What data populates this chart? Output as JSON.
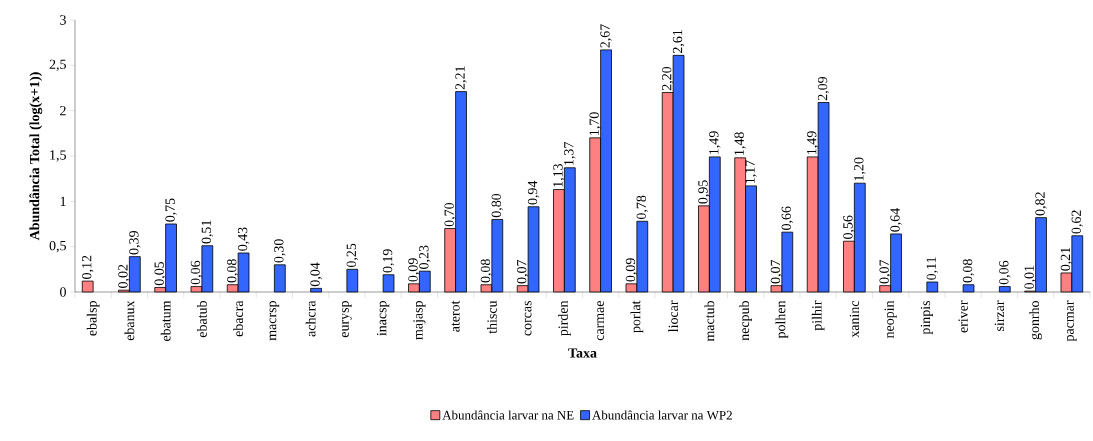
{
  "chart_data": {
    "type": "bar",
    "xlabel": "Taxa",
    "ylabel": "Abundância Total (log(x+1))",
    "categories": [
      "ebalsp",
      "ebanux",
      "ebatum",
      "ebatub",
      "ebacra",
      "macrsp",
      "achcra",
      "eurysp",
      "inacsp",
      "majasp",
      "aterot",
      "thiscu",
      "corcas",
      "pirden",
      "carmae",
      "porlat",
      "liocar",
      "mactub",
      "necpub",
      "polhen",
      "pilhir",
      "xaninc",
      "neopin",
      "pinpis",
      "eriver",
      "sirzar",
      "gonrho",
      "pacmar"
    ],
    "series": [
      {
        "name": "Abundância larvar na NE",
        "color": "#ff8080",
        "values": [
          0.12,
          0.02,
          0.05,
          0.06,
          0.08,
          null,
          null,
          null,
          null,
          0.09,
          0.7,
          0.08,
          0.07,
          1.13,
          1.7,
          0.09,
          2.2,
          0.95,
          1.48,
          0.07,
          1.49,
          0.56,
          0.07,
          null,
          null,
          null,
          0.01,
          0.21
        ],
        "value_labels": [
          "0,12",
          "0,02",
          "0,05",
          "0,06",
          "0,08",
          null,
          null,
          null,
          null,
          "0,09",
          "0,70",
          "0,08",
          "0,07",
          "1,13",
          "1,70",
          "0,09",
          "2,20",
          "0,95",
          "1,48",
          "0,07",
          "1,49",
          "0,56",
          "0,07",
          null,
          null,
          null,
          "0,01",
          "0,21"
        ]
      },
      {
        "name": "Abundância larvar na WP2",
        "color": "#3366ff",
        "values": [
          null,
          0.39,
          0.75,
          0.51,
          0.43,
          0.3,
          0.04,
          0.25,
          0.19,
          0.23,
          2.21,
          0.8,
          0.94,
          1.37,
          2.67,
          0.78,
          2.61,
          1.49,
          1.17,
          0.66,
          2.09,
          1.2,
          0.64,
          0.11,
          0.08,
          0.06,
          0.82,
          0.62
        ],
        "value_labels": [
          null,
          "0,39",
          "0,75",
          "0,51",
          "0,43",
          "0,30",
          "0,04",
          "0,25",
          "0,19",
          "0,23",
          "2,21",
          "0,80",
          "0,94",
          "1,37",
          "2,67",
          "0,78",
          "2,61",
          "1,49",
          "1,17",
          "0,66",
          "2,09",
          "1,20",
          "0,64",
          "0,11",
          "0,08",
          "0,06",
          "0,82",
          "0,62"
        ]
      }
    ],
    "ylim": [
      0,
      3
    ],
    "yticks": [
      0,
      {
        "value": 0.5,
        "label": "0,5"
      },
      1,
      {
        "value": 1.5,
        "label": "1,5"
      },
      2,
      {
        "value": 2.5,
        "label": "2,5"
      },
      3
    ],
    "grid": false,
    "legend": "bottom"
  }
}
